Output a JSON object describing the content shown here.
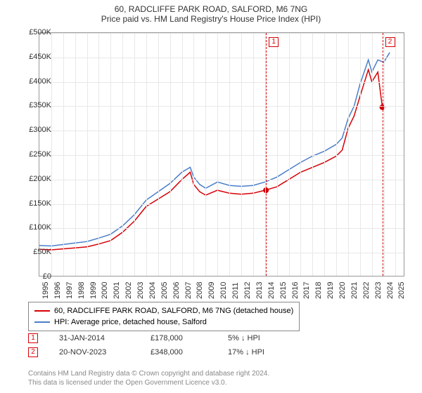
{
  "title": {
    "main": "60, RADCLIFFE PARK ROAD, SALFORD, M6 7NG",
    "sub": "Price paid vs. HM Land Registry's House Price Index (HPI)"
  },
  "chart": {
    "type": "line",
    "background_color": "#ffffff",
    "border_color": "#999999",
    "grid_color": "#e8e8e8",
    "xlim": [
      1995,
      2025.8
    ],
    "ylim": [
      0,
      500000
    ],
    "ytick_step": 50000,
    "ytick_format_prefix": "£",
    "yticks": [
      "£0",
      "£50K",
      "£100K",
      "£150K",
      "£200K",
      "£250K",
      "£300K",
      "£350K",
      "£400K",
      "£450K",
      "£500K"
    ],
    "xticks": [
      1995,
      1996,
      1997,
      1998,
      1999,
      2000,
      2001,
      2002,
      2003,
      2004,
      2005,
      2006,
      2007,
      2008,
      2009,
      2010,
      2011,
      2012,
      2013,
      2014,
      2015,
      2016,
      2017,
      2018,
      2019,
      2020,
      2021,
      2022,
      2023,
      2024,
      2025
    ],
    "series": [
      {
        "name": "60, RADCLIFFE PARK ROAD, SALFORD, M6 7NG (detached house)",
        "color": "#d50006",
        "line_width": 1.5,
        "data": [
          [
            1995,
            57000
          ],
          [
            1996,
            56000
          ],
          [
            1997,
            58000
          ],
          [
            1998,
            60000
          ],
          [
            1999,
            62000
          ],
          [
            2000,
            68000
          ],
          [
            2001,
            75000
          ],
          [
            2002,
            92000
          ],
          [
            2003,
            115000
          ],
          [
            2004,
            145000
          ],
          [
            2005,
            160000
          ],
          [
            2006,
            175000
          ],
          [
            2007,
            200000
          ],
          [
            2007.7,
            215000
          ],
          [
            2008,
            190000
          ],
          [
            2008.5,
            175000
          ],
          [
            2009,
            168000
          ],
          [
            2010,
            178000
          ],
          [
            2011,
            172000
          ],
          [
            2012,
            170000
          ],
          [
            2013,
            172000
          ],
          [
            2014,
            178000
          ],
          [
            2015,
            185000
          ],
          [
            2016,
            200000
          ],
          [
            2017,
            215000
          ],
          [
            2018,
            225000
          ],
          [
            2019,
            235000
          ],
          [
            2020,
            248000
          ],
          [
            2020.5,
            260000
          ],
          [
            2021,
            305000
          ],
          [
            2021.5,
            330000
          ],
          [
            2022,
            370000
          ],
          [
            2022.7,
            425000
          ],
          [
            2023,
            400000
          ],
          [
            2023.5,
            420000
          ],
          [
            2023.88,
            348000
          ]
        ]
      },
      {
        "name": "HPI: Average price, detached house, Salford",
        "color": "#4a7ec8",
        "line_width": 1.5,
        "data": [
          [
            1995,
            65000
          ],
          [
            1996,
            64000
          ],
          [
            1997,
            67000
          ],
          [
            1998,
            70000
          ],
          [
            1999,
            73000
          ],
          [
            2000,
            80000
          ],
          [
            2001,
            88000
          ],
          [
            2002,
            105000
          ],
          [
            2003,
            128000
          ],
          [
            2004,
            158000
          ],
          [
            2005,
            175000
          ],
          [
            2006,
            192000
          ],
          [
            2007,
            215000
          ],
          [
            2007.7,
            225000
          ],
          [
            2008,
            205000
          ],
          [
            2008.5,
            190000
          ],
          [
            2009,
            182000
          ],
          [
            2010,
            195000
          ],
          [
            2011,
            188000
          ],
          [
            2012,
            186000
          ],
          [
            2013,
            188000
          ],
          [
            2014,
            195000
          ],
          [
            2015,
            205000
          ],
          [
            2016,
            220000
          ],
          [
            2017,
            235000
          ],
          [
            2018,
            248000
          ],
          [
            2019,
            258000
          ],
          [
            2020,
            272000
          ],
          [
            2020.5,
            285000
          ],
          [
            2021,
            325000
          ],
          [
            2021.5,
            350000
          ],
          [
            2022,
            395000
          ],
          [
            2022.7,
            445000
          ],
          [
            2023,
            420000
          ],
          [
            2023.5,
            445000
          ],
          [
            2024,
            440000
          ],
          [
            2024.5,
            460000
          ]
        ]
      }
    ],
    "markers": [
      {
        "n": 1,
        "x": 2014.08,
        "y": 178000,
        "color": "#d50006",
        "dashed_line_color": "#d50006"
      },
      {
        "n": 2,
        "x": 2023.88,
        "y": 348000,
        "color": "#d50006",
        "dashed_line_color": "#d50006"
      }
    ]
  },
  "legend": {
    "items": [
      {
        "color": "#d50006",
        "label": "60, RADCLIFFE PARK ROAD, SALFORD, M6 7NG (detached house)"
      },
      {
        "color": "#4a7ec8",
        "label": "HPI: Average price, detached house, Salford"
      }
    ]
  },
  "marker_data": [
    {
      "n": 1,
      "color": "#d50006",
      "date": "31-JAN-2014",
      "price": "£178,000",
      "delta": "5% ↓ HPI"
    },
    {
      "n": 2,
      "color": "#d50006",
      "date": "20-NOV-2023",
      "price": "£348,000",
      "delta": "17% ↓ HPI"
    }
  ],
  "footer": {
    "line1": "Contains HM Land Registry data © Crown copyright and database right 2024.",
    "line2": "This data is licensed under the Open Government Licence v3.0."
  }
}
